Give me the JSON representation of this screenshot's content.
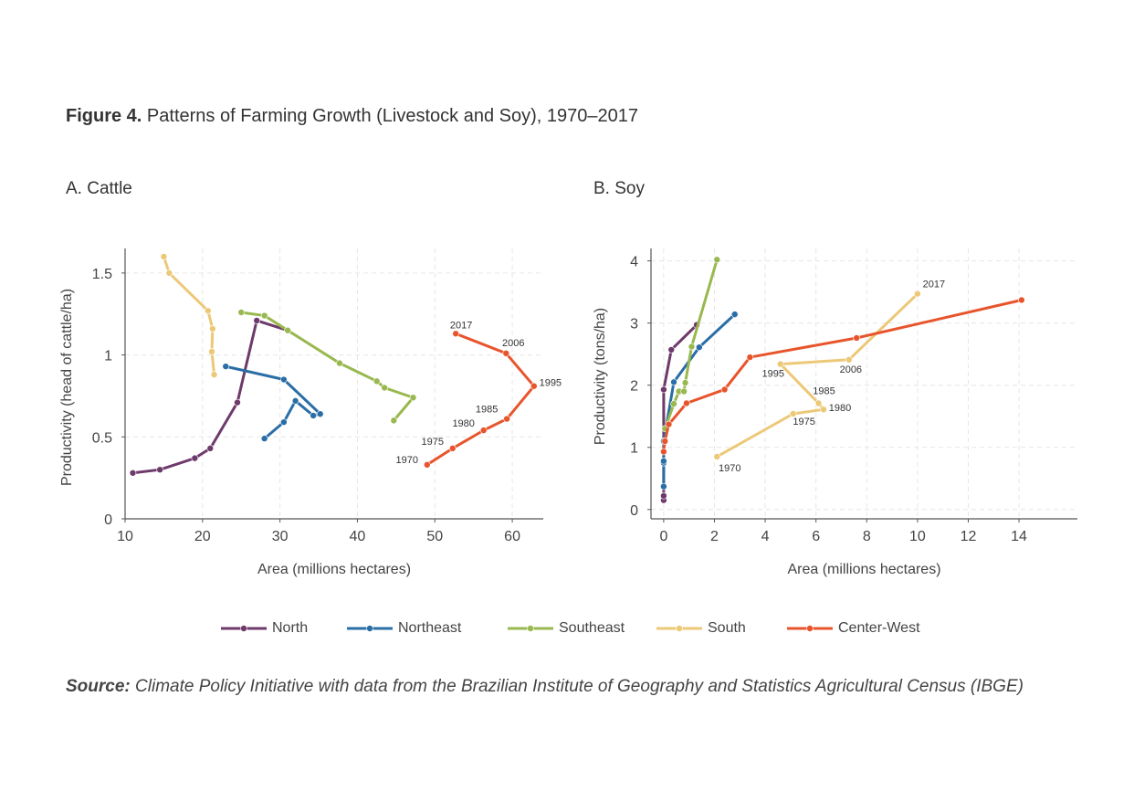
{
  "figure": {
    "label": "Figure 4.",
    "title": "Patterns of Farming Growth (Livestock and Soy), 1970–2017"
  },
  "source": {
    "label": "Source:",
    "text": "Climate Policy Initiative with data from the Brazilian Institute of Geography and Statistics Agricultural Census (IBGE)"
  },
  "colors": {
    "North": "#6e3a6b",
    "Northeast": "#2a6ea6",
    "Southeast": "#99b84f",
    "South": "#ecc877",
    "Center-West": "#e8542b"
  },
  "legend": [
    "North",
    "Northeast",
    "Southeast",
    "South",
    "Center-West"
  ],
  "chart_data": [
    {
      "type": "line",
      "title": "A. Cattle",
      "xlabel": "Area (millions hectares)",
      "ylabel": "Productivity (head of cattle/ha)",
      "xlim": [
        10,
        64
      ],
      "ylim": [
        0,
        1.65
      ],
      "xticks": [
        10,
        20,
        30,
        40,
        50,
        60
      ],
      "yticks": [
        0,
        0.5,
        1,
        1.5
      ],
      "ytick_labels": [
        "0",
        "0.5",
        "1",
        "1.5"
      ],
      "grid": true,
      "series": [
        {
          "name": "North",
          "points": [
            [
              11,
              0.28
            ],
            [
              14.5,
              0.3
            ],
            [
              19,
              0.37
            ],
            [
              21,
              0.43
            ],
            [
              24.5,
              0.71
            ],
            [
              27,
              1.21
            ],
            [
              31,
              1.15
            ]
          ],
          "labels": []
        },
        {
          "name": "Northeast",
          "points": [
            [
              28,
              0.49
            ],
            [
              30.5,
              0.59
            ],
            [
              32,
              0.72
            ],
            [
              34.3,
              0.63
            ],
            [
              35.2,
              0.64
            ],
            [
              30.5,
              0.85
            ],
            [
              23,
              0.93
            ]
          ],
          "labels": []
        },
        {
          "name": "Southeast",
          "points": [
            [
              25,
              1.26
            ],
            [
              28,
              1.24
            ],
            [
              31,
              1.15
            ],
            [
              37.7,
              0.95
            ],
            [
              42.5,
              0.84
            ],
            [
              43.5,
              0.8
            ],
            [
              47.2,
              0.74
            ],
            [
              44.7,
              0.6
            ]
          ],
          "labels": []
        },
        {
          "name": "South",
          "points": [
            [
              15,
              1.6
            ],
            [
              15.7,
              1.5
            ],
            [
              20.7,
              1.27
            ],
            [
              21.3,
              1.16
            ],
            [
              21.2,
              1.02
            ],
            [
              21.5,
              0.88
            ]
          ],
          "labels": []
        },
        {
          "name": "Center-West",
          "points": [
            [
              49,
              0.33
            ],
            [
              52.3,
              0.43
            ],
            [
              56.3,
              0.54
            ],
            [
              59.3,
              0.61
            ],
            [
              62.8,
              0.81
            ],
            [
              59.2,
              1.01
            ],
            [
              52.7,
              1.13
            ]
          ],
          "labels": [
            "1970",
            "1975",
            "1980",
            "1985",
            "1995",
            "2006",
            "2017"
          ]
        }
      ]
    },
    {
      "type": "line",
      "title": "B. Soy",
      "xlabel": "Area (millions hectares)",
      "ylabel": "Productivity (tons/ha)",
      "xlim": [
        -0.5,
        16.3
      ],
      "ylim": [
        -0.15,
        4.2
      ],
      "xticks": [
        0,
        2,
        4,
        6,
        8,
        10,
        12,
        14
      ],
      "yticks": [
        0,
        1,
        2,
        3,
        4
      ],
      "ytick_labels": [
        "0",
        "1",
        "2",
        "3",
        "4"
      ],
      "grid": true,
      "series": [
        {
          "name": "North",
          "points": [
            [
              0,
              0.15
            ],
            [
              0,
              0.22
            ],
            [
              0,
              1.93
            ],
            [
              0.3,
              2.57
            ],
            [
              1.3,
              2.97
            ]
          ],
          "labels": []
        },
        {
          "name": "Northeast",
          "points": [
            [
              0,
              0.37
            ],
            [
              0,
              0.75
            ],
            [
              0,
              0.78
            ],
            [
              0,
              1.1
            ],
            [
              0.4,
              2.05
            ],
            [
              1.4,
              2.61
            ],
            [
              2.8,
              3.14
            ]
          ],
          "labels": []
        },
        {
          "name": "Southeast",
          "points": [
            [
              0.05,
              1.3
            ],
            [
              0.4,
              1.7
            ],
            [
              0.6,
              1.9
            ],
            [
              0.8,
              1.9
            ],
            [
              0.85,
              2.04
            ],
            [
              1.1,
              2.62
            ],
            [
              2.1,
              4.02
            ]
          ],
          "labels": []
        },
        {
          "name": "South",
          "points": [
            [
              2.1,
              0.85
            ],
            [
              5.1,
              1.54
            ],
            [
              6.3,
              1.61
            ],
            [
              6.1,
              1.71
            ],
            [
              4.6,
              2.34
            ],
            [
              7.3,
              2.41
            ],
            [
              10,
              3.47
            ]
          ],
          "labels": [
            "1970",
            "1975",
            "1980",
            "1985",
            "1995",
            "2006",
            "2017"
          ]
        },
        {
          "name": "Center-West",
          "points": [
            [
              0,
              0.93
            ],
            [
              0.05,
              1.1
            ],
            [
              0.2,
              1.37
            ],
            [
              0.9,
              1.71
            ],
            [
              2.4,
              1.93
            ],
            [
              3.4,
              2.45
            ],
            [
              7.6,
              2.76
            ],
            [
              14.1,
              3.37
            ]
          ],
          "labels": []
        }
      ]
    }
  ]
}
